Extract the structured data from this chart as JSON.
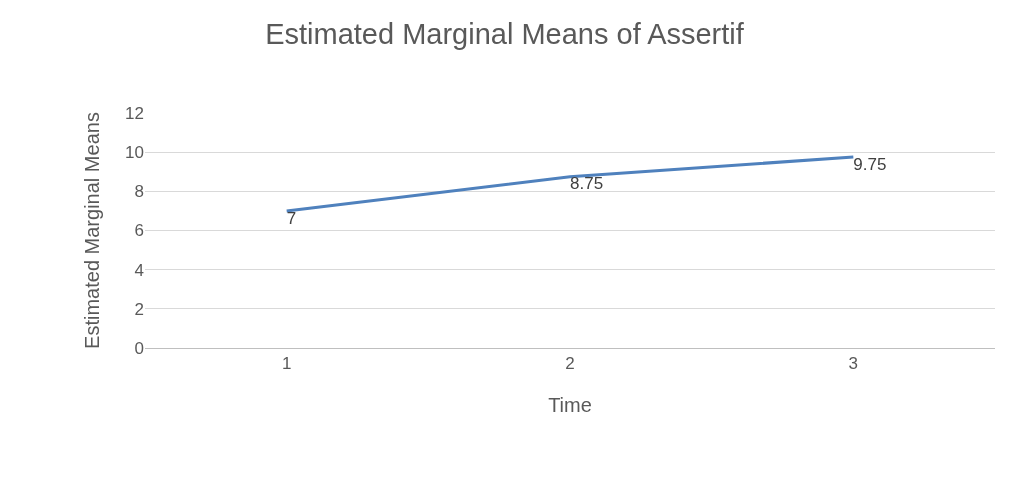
{
  "chart_data": {
    "type": "line",
    "title": "Estimated Marginal Means of Assertif",
    "xlabel": "Time",
    "ylabel": "Estimated Marginal Means",
    "categories": [
      "1",
      "2",
      "3"
    ],
    "series": [
      {
        "color": "#4f81bd",
        "values": [
          7,
          8.75,
          9.75
        ]
      }
    ],
    "ylim": [
      0,
      12
    ],
    "yticks": [
      0,
      2,
      4,
      6,
      8,
      10,
      12
    ],
    "grid": "y",
    "data_labels": true,
    "marker": "none",
    "line_style": "solid"
  }
}
